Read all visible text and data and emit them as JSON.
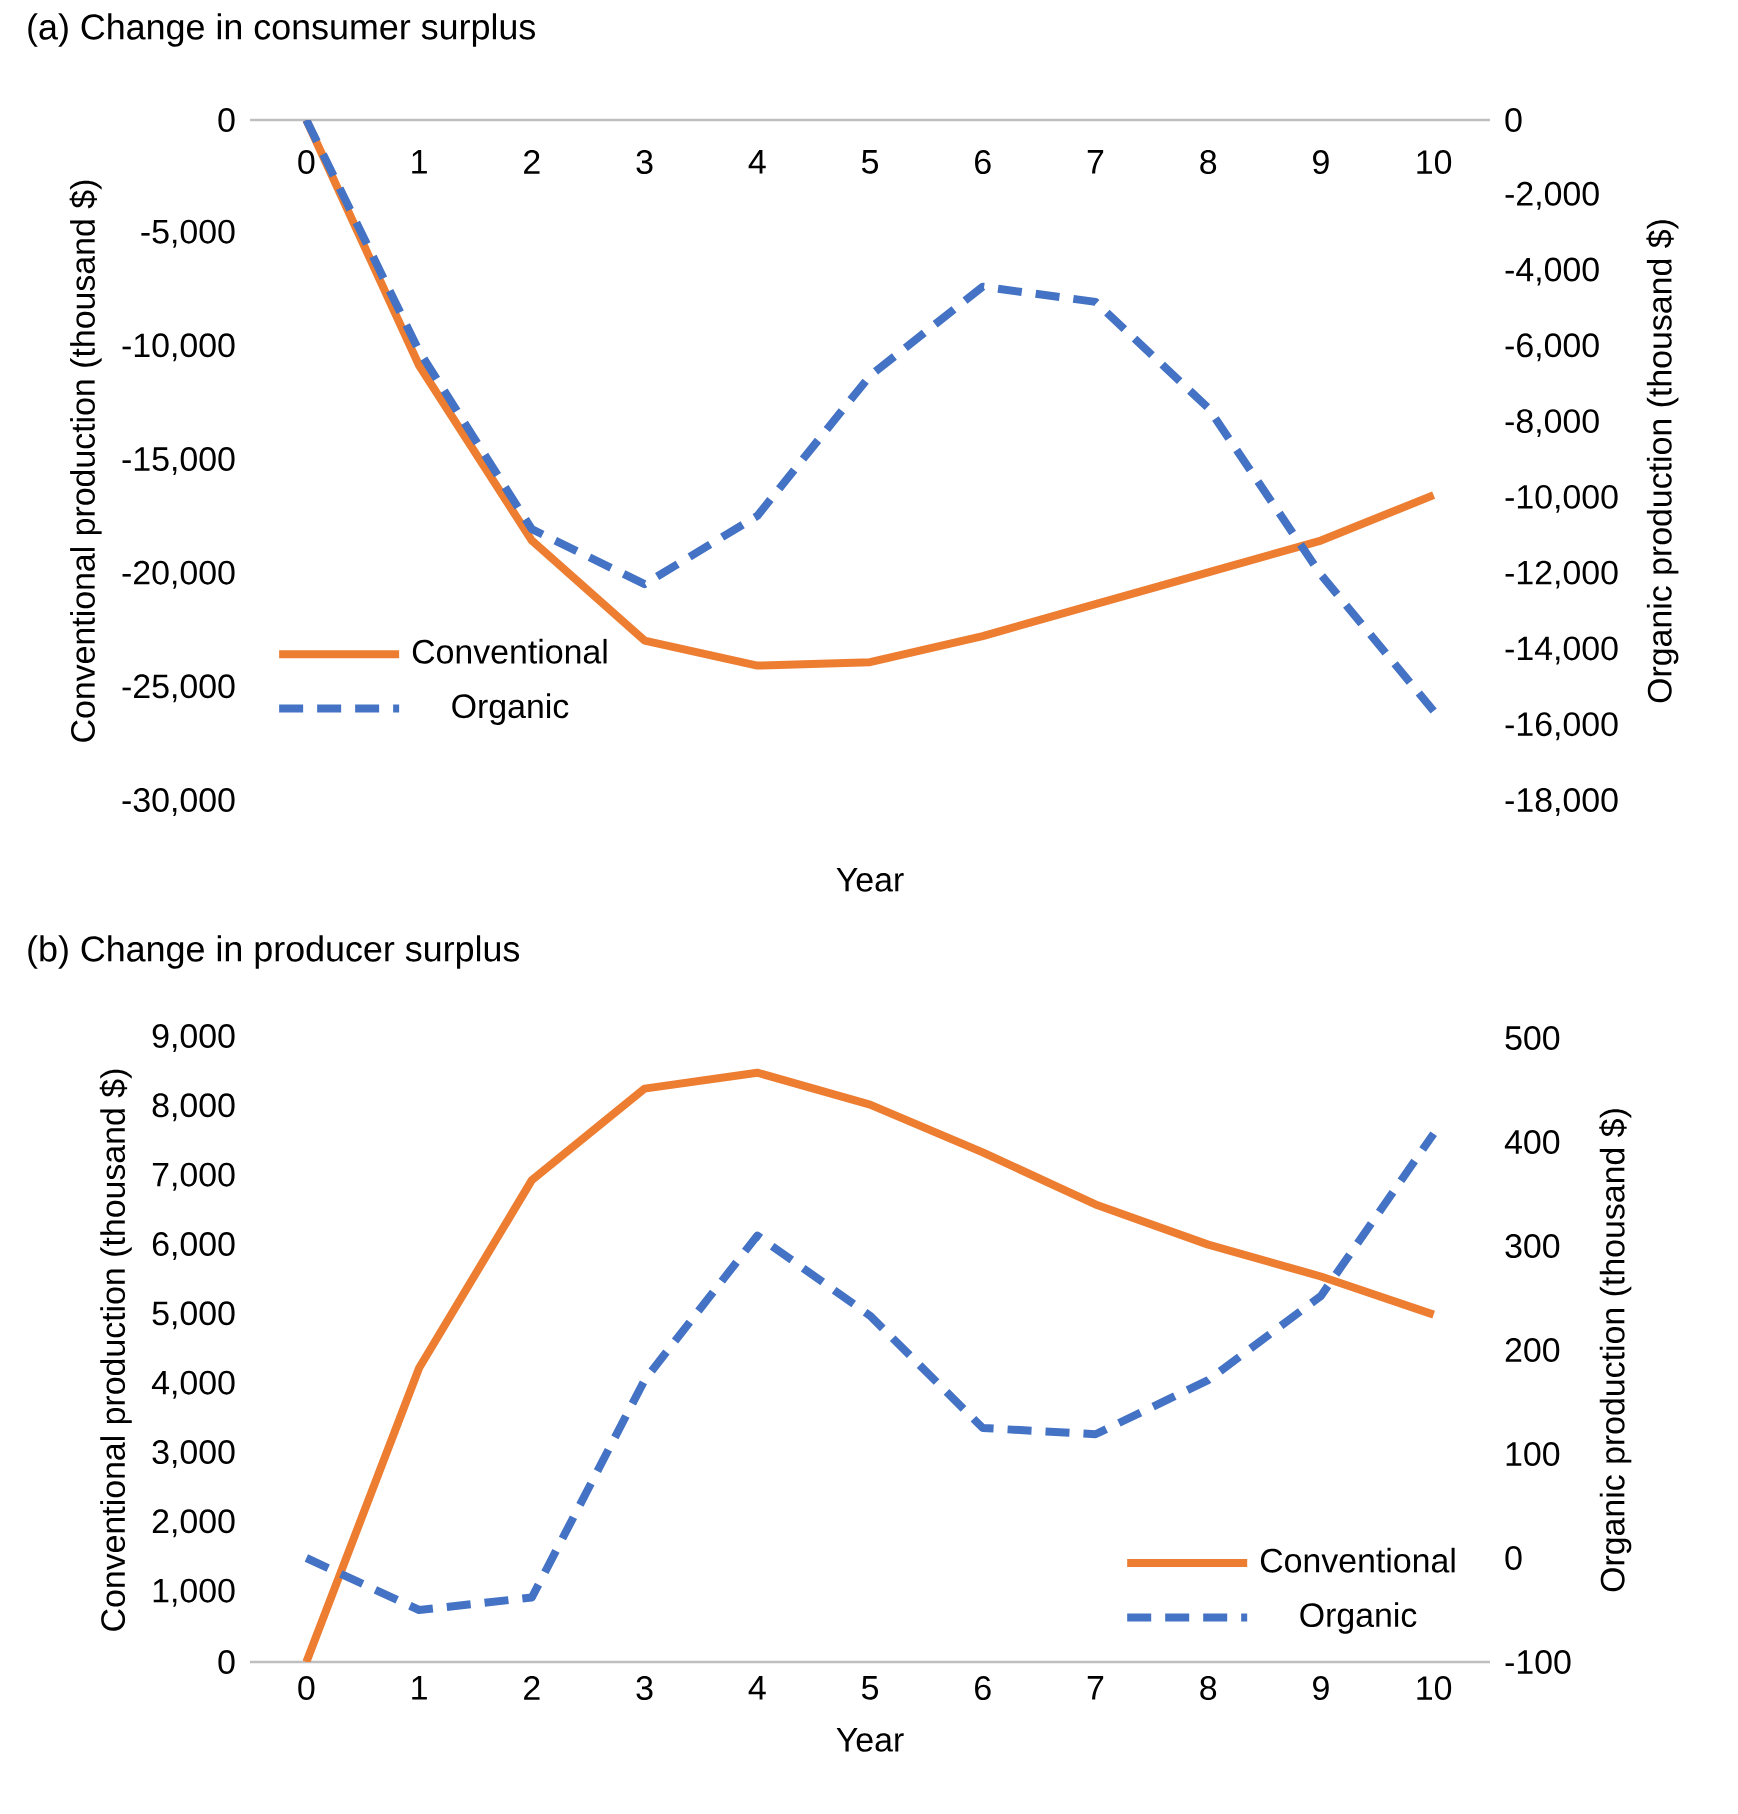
{
  "chart_data": [
    {
      "type": "line",
      "title": "(a) Change in consumer surplus",
      "xlabel": "Year",
      "ylabel": "Conventional production (thousand $)",
      "y2label": "Organic production (thousand $)",
      "categories": [
        "0",
        "1",
        "2",
        "3",
        "4",
        "5",
        "6",
        "7",
        "8",
        "9",
        "10"
      ],
      "series": [
        {
          "name": "Conventional",
          "color": "#ed7d31",
          "line_style": "solid",
          "values": [
            0,
            -10800,
            -18500,
            -22900,
            -24000,
            -23850,
            -22700,
            -21300,
            -19900,
            -18500,
            -16500
          ]
        },
        {
          "name": "Organic",
          "color": "#4472c4",
          "line_style": "dashed",
          "axis": "y2",
          "values": [
            0,
            -6100,
            -10800,
            -12250,
            -10450,
            -6750,
            -4400,
            -4800,
            -7600,
            -12000,
            -15600
          ]
        }
      ],
      "ylim": [
        -30000,
        0
      ],
      "yticks": [
        {
          "value": -30000,
          "label": "-30,000"
        },
        {
          "value": -25000,
          "label": "-25,000"
        },
        {
          "value": -20000,
          "label": "-20,000"
        },
        {
          "value": -15000,
          "label": "-15,000"
        },
        {
          "value": -10000,
          "label": "-10,000"
        },
        {
          "value": -5000,
          "label": "-5,000"
        },
        0
      ],
      "y2lim": [
        -18000,
        0
      ],
      "y2ticks": [
        {
          "value": -18000,
          "label": "-18,000"
        },
        {
          "value": -16000,
          "label": "-16,000"
        },
        {
          "value": -14000,
          "label": "-14,000"
        },
        {
          "value": -12000,
          "label": "-12,000"
        },
        {
          "value": -10000,
          "label": "-10,000"
        },
        {
          "value": -8000,
          "label": "-8,000"
        },
        {
          "value": -6000,
          "label": "-6,000"
        },
        {
          "value": -4000,
          "label": "-4,000"
        },
        {
          "value": -2000,
          "label": "-2,000"
        },
        0
      ],
      "legend": "bottom left",
      "grid": false
    },
    {
      "type": "line",
      "title": "(b) Change in producer surplus",
      "xlabel": "Year",
      "ylabel": "Conventional production (thousand $)",
      "y2label": "Organic production (thousand $)",
      "categories": [
        "0",
        "1",
        "2",
        "3",
        "4",
        "5",
        "6",
        "7",
        "8",
        "9",
        "10"
      ],
      "series": [
        {
          "name": "Conventional",
          "color": "#ed7d31",
          "line_style": "solid",
          "values": [
            0,
            4240,
            6950,
            8270,
            8500,
            8040,
            7350,
            6600,
            6020,
            5560,
            5010
          ]
        },
        {
          "name": "Organic",
          "color": "#4472c4",
          "line_style": "dashed",
          "axis": "y2",
          "values": [
            0,
            -50,
            -38,
            171,
            310,
            233,
            125,
            119,
            171,
            252,
            408
          ]
        }
      ],
      "ylim": [
        0,
        9000
      ],
      "yticks": [
        0,
        {
          "value": 1000,
          "label": "1,000"
        },
        {
          "value": 2000,
          "label": "2,000"
        },
        {
          "value": 3000,
          "label": "3,000"
        },
        {
          "value": 4000,
          "label": "4,000"
        },
        {
          "value": 5000,
          "label": "5,000"
        },
        {
          "value": 6000,
          "label": "6,000"
        },
        {
          "value": 7000,
          "label": "7,000"
        },
        {
          "value": 8000,
          "label": "8,000"
        },
        {
          "value": 9000,
          "label": "9,000"
        }
      ],
      "y2lim": [
        -100,
        500
      ],
      "y2ticks": [
        -100,
        0,
        100,
        200,
        300,
        400,
        500
      ],
      "legend": "bottom right",
      "grid": false
    }
  ]
}
